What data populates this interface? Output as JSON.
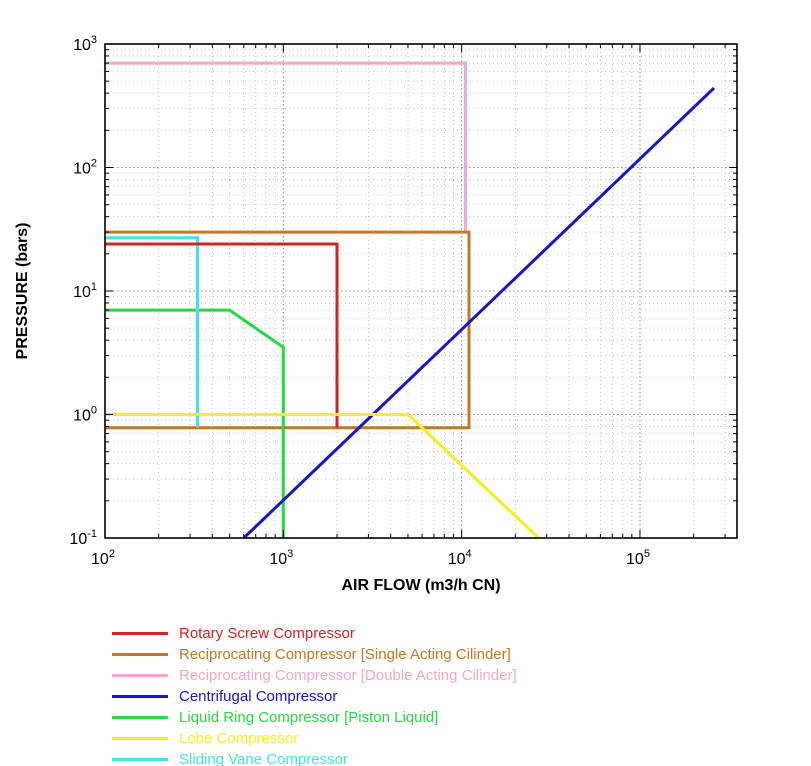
{
  "chart_data": {
    "type": "line",
    "title": "",
    "xlabel": "AIR FLOW (m3/h CN)",
    "ylabel": "PRESSURE (bars)",
    "xscale": "log",
    "yscale": "log",
    "xlim": [
      100,
      350000
    ],
    "ylim": [
      0.1,
      1000
    ],
    "x_tick_exponents": [
      2,
      3,
      4,
      5
    ],
    "y_tick_exponents": [
      -1,
      0,
      1,
      2,
      3
    ],
    "grid": "major-and-minor-dotted",
    "legend_position": "below-left",
    "background_color": "#ffffff",
    "axis_color": "#000000",
    "grid_major_color": "#8f8f8f",
    "grid_minor_color": "#c2c2c2",
    "series": [
      {
        "name": "Reciprocating Compressor [Double Acting Cilinder]",
        "color": "#f4a6cd",
        "legend_order": 2,
        "points": [
          [
            100,
            700
          ],
          [
            10500,
            700
          ],
          [
            10500,
            30
          ]
        ]
      },
      {
        "name": "Reciprocating Compressor [Single Acting Cilinder]",
        "color": "#c6781e",
        "legend_order": 1,
        "points": [
          [
            100,
            30
          ],
          [
            11000,
            30
          ],
          [
            11000,
            0.78
          ],
          [
            100,
            0.78
          ]
        ]
      },
      {
        "name": "Liquid Ring Compressor [Piston Liquid]",
        "color": "#24da40",
        "legend_order": 4,
        "points": [
          [
            100,
            7
          ],
          [
            500,
            7
          ],
          [
            1000,
            3.5
          ],
          [
            1000,
            0.1
          ]
        ]
      },
      {
        "name": "Sliding Vane Compressor",
        "color": "#3ee4ea",
        "legend_order": 6,
        "points": [
          [
            100,
            27
          ],
          [
            330,
            27
          ],
          [
            330,
            0.78
          ]
        ]
      },
      {
        "name": "Rotary Screw Compressor",
        "color": "#d22420",
        "legend_order": 0,
        "points": [
          [
            100,
            24
          ],
          [
            2000,
            24
          ],
          [
            2000,
            0.78
          ]
        ]
      },
      {
        "name": "Centrifugal Compressor",
        "color": "#1616c8",
        "legend_order": 3,
        "points": [
          [
            600,
            0.1
          ],
          [
            260000,
            440
          ]
        ]
      },
      {
        "name": "Lobe Compressor",
        "color": "#f4f01e",
        "legend_order": 5,
        "points": [
          [
            100,
            1
          ],
          [
            5000,
            1
          ],
          [
            27000,
            0.1
          ]
        ]
      }
    ]
  }
}
